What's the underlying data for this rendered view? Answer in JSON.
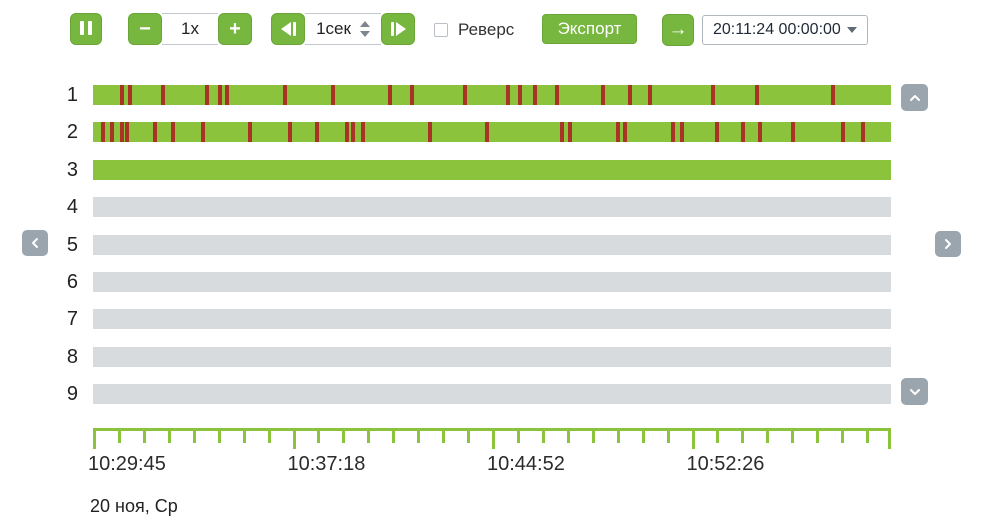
{
  "toolbar": {
    "pause_button": {
      "icon": "pause-icon"
    },
    "speed_control": {
      "decrease_label": "−",
      "value": "1x",
      "increase_label": "+"
    },
    "step_control": {
      "back_icon": "step-backward-icon",
      "value": "1сек",
      "forward_icon": "step-forward-icon"
    },
    "reverse": {
      "label": "Реверс",
      "checked": false
    },
    "export_label": "Экспорт",
    "goto_button": {
      "icon_glyph": "→"
    },
    "time_dropdown": {
      "value": "20:11:24 00:00:00"
    }
  },
  "timeline": {
    "channels": [
      {
        "label": "1",
        "recorded": true,
        "events_pct": [
          3.6,
          4.6,
          8.8,
          14.3,
          15.9,
          16.8,
          24.1,
          30.1,
          37.2,
          40.0,
          46.6,
          52.0,
          53.5,
          55.4,
          58.1,
          63.9,
          67.3,
          69.8,
          77.7,
          83.2,
          92.7
        ]
      },
      {
        "label": "2",
        "recorded": true,
        "events_pct": [
          1.3,
          2.4,
          3.6,
          4.3,
          7.8,
          10.0,
          13.8,
          19.7,
          24.7,
          28.1,
          31.8,
          32.6,
          33.8,
          42.2,
          49.4,
          58.8,
          59.8,
          65.8,
          66.7,
          72.7,
          73.8,
          78.2,
          81.5,
          83.6,
          87.7,
          94.0,
          96.5
        ]
      },
      {
        "label": "3",
        "recorded": true,
        "events_pct": []
      },
      {
        "label": "4",
        "recorded": false,
        "events_pct": []
      },
      {
        "label": "5",
        "recorded": false,
        "events_pct": []
      },
      {
        "label": "6",
        "recorded": false,
        "events_pct": []
      },
      {
        "label": "7",
        "recorded": false,
        "events_pct": []
      },
      {
        "label": "8",
        "recorded": false,
        "events_pct": []
      },
      {
        "label": "9",
        "recorded": false,
        "events_pct": []
      }
    ],
    "ruler": {
      "major_ticks_pct": [
        0,
        25,
        50,
        75,
        100
      ],
      "minor_ticks_per_segment": 7,
      "time_labels": [
        {
          "text": "10:29:45",
          "pct": 0
        },
        {
          "text": "10:37:18",
          "pct": 25
        },
        {
          "text": "10:44:52",
          "pct": 50
        },
        {
          "text": "10:52:26",
          "pct": 75
        }
      ]
    },
    "date_label": "20 ноя, Ср"
  },
  "nav": {
    "up_icon": "chevron-up-icon",
    "down_icon": "chevron-down-icon",
    "left_icon": "chevron-left-icon",
    "right_icon": "chevron-right-icon"
  },
  "colors": {
    "accent_green": "#77b63f",
    "bar_green": "#8cc33c",
    "event_red": "#a93327",
    "bar_gray": "#d8dbde",
    "nav_gray": "#9aa5ad"
  }
}
